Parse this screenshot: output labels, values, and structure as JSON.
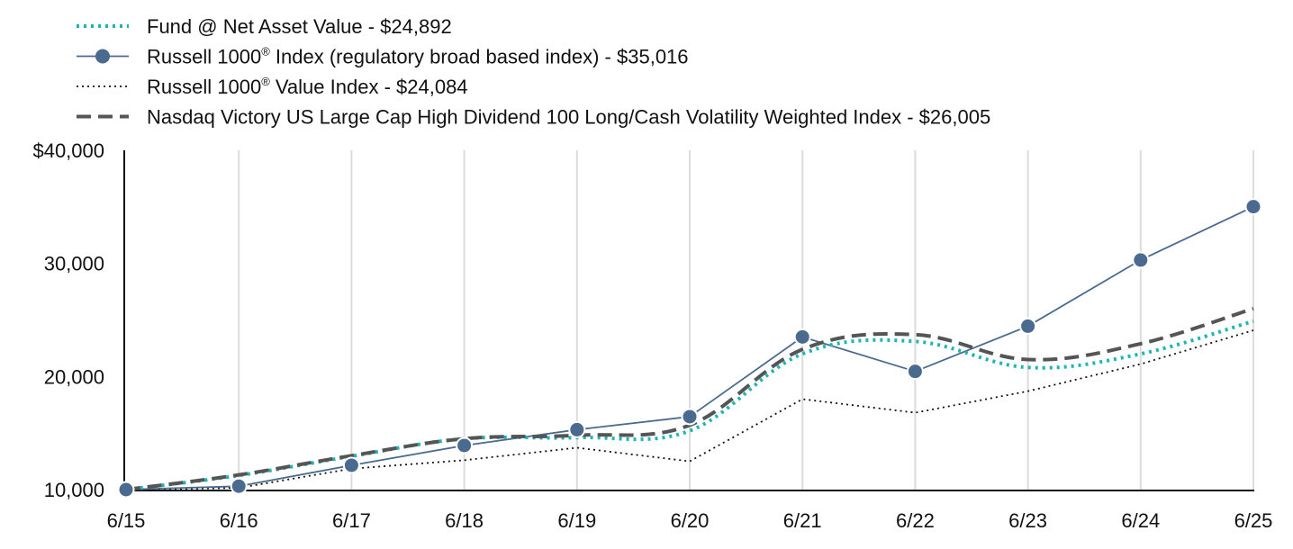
{
  "chart_data": {
    "type": "line",
    "title": "",
    "xlabel": "",
    "ylabel": "",
    "categories": [
      "6/15",
      "6/16",
      "6/17",
      "6/18",
      "6/19",
      "6/20",
      "6/21",
      "6/22",
      "6/23",
      "6/24",
      "6/25"
    ],
    "ylim": [
      10000,
      40000
    ],
    "yticks": [
      10000,
      20000,
      30000,
      40000
    ],
    "ytick_labels": [
      "10,000",
      "20,000",
      "30,000",
      "$40,000"
    ],
    "grid": "vertical",
    "legend_position": "top-left",
    "series": [
      {
        "name": "Fund @ Net Asset Value - $24,892",
        "style": "dotted",
        "color": "#1fb5b5",
        "values": [
          10000,
          11250,
          12950,
          14500,
          14600,
          15200,
          22000,
          23100,
          20800,
          22000,
          24892
        ]
      },
      {
        "name_main": "Russell 1000",
        "name_sup": "®",
        "name_rest": " Index (regulatory broad based index) - $35,016",
        "style": "solid-markers",
        "color": "#4a6b8f",
        "values": [
          10000,
          10300,
          12150,
          13900,
          15300,
          16450,
          23500,
          20450,
          24450,
          30300,
          35016
        ]
      },
      {
        "name_main": "Russell 1000",
        "name_sup": "®",
        "name_rest": " Value Index - $24,084",
        "style": "fine-dotted",
        "color": "#111111",
        "values": [
          10000,
          10150,
          11850,
          12600,
          13700,
          12500,
          18000,
          16800,
          18700,
          21100,
          24084
        ]
      },
      {
        "name": "Nasdaq Victory US Large Cap High Dividend 100 Long/Cash Volatility Weighted Index - $26,005",
        "style": "dashed",
        "color": "#555555",
        "values": [
          10000,
          11300,
          13000,
          14500,
          14800,
          15700,
          22400,
          23700,
          21500,
          22900,
          26005
        ]
      }
    ]
  }
}
